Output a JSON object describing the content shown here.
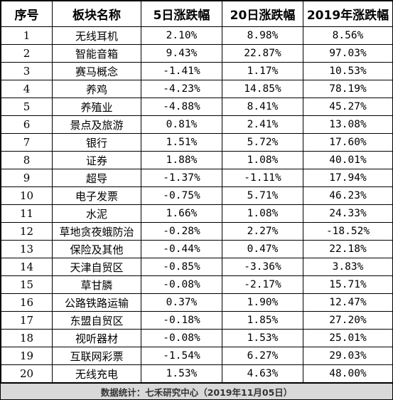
{
  "table": {
    "headers": [
      "序号",
      "板块名称",
      "5日涨跌幅",
      "20日涨跌幅",
      "2019年涨跌幅"
    ],
    "rows": [
      [
        "1",
        "无线耳机",
        "2.10%",
        "8.98%",
        "8.56%"
      ],
      [
        "2",
        "智能音箱",
        "9.43%",
        "22.87%",
        "97.03%"
      ],
      [
        "3",
        "赛马概念",
        "-1.41%",
        "1.17%",
        "10.53%"
      ],
      [
        "4",
        "养鸡",
        "-4.23%",
        "14.85%",
        "78.19%"
      ],
      [
        "5",
        "养殖业",
        "-4.88%",
        "8.41%",
        "45.27%"
      ],
      [
        "6",
        "景点及旅游",
        "0.81%",
        "2.41%",
        "13.08%"
      ],
      [
        "7",
        "银行",
        "1.51%",
        "5.72%",
        "17.60%"
      ],
      [
        "8",
        "证券",
        "1.88%",
        "1.08%",
        "40.01%"
      ],
      [
        "9",
        "超导",
        "-1.37%",
        "-1.11%",
        "17.94%"
      ],
      [
        "10",
        "电子发票",
        "-0.75%",
        "5.71%",
        "46.23%"
      ],
      [
        "11",
        "水泥",
        "1.66%",
        "1.08%",
        "24.33%"
      ],
      [
        "12",
        "草地贪夜蛾防治",
        "-0.28%",
        "2.27%",
        "-18.52%"
      ],
      [
        "13",
        "保险及其他",
        "-0.44%",
        "0.47%",
        "22.18%"
      ],
      [
        "14",
        "天津自贸区",
        "-0.85%",
        "-3.36%",
        "3.83%"
      ],
      [
        "15",
        "草甘膦",
        "-0.08%",
        "-2.17%",
        "15.71%"
      ],
      [
        "16",
        "公路铁路运输",
        "0.37%",
        "1.90%",
        "12.47%"
      ],
      [
        "17",
        "东盟自贸区",
        "-0.18%",
        "1.85%",
        "27.20%"
      ],
      [
        "18",
        "视听器材",
        "-0.08%",
        "1.53%",
        "25.01%"
      ],
      [
        "19",
        "互联网彩票",
        "-1.54%",
        "6.27%",
        "29.03%"
      ],
      [
        "20",
        "无线充电",
        "1.53%",
        "4.63%",
        "48.00%"
      ]
    ]
  },
  "footer": {
    "text": "数据统计：七禾研究中心（2019年11月05日）"
  },
  "colors": {
    "footer_bg": "#d9d9d9",
    "border": "#000000"
  }
}
